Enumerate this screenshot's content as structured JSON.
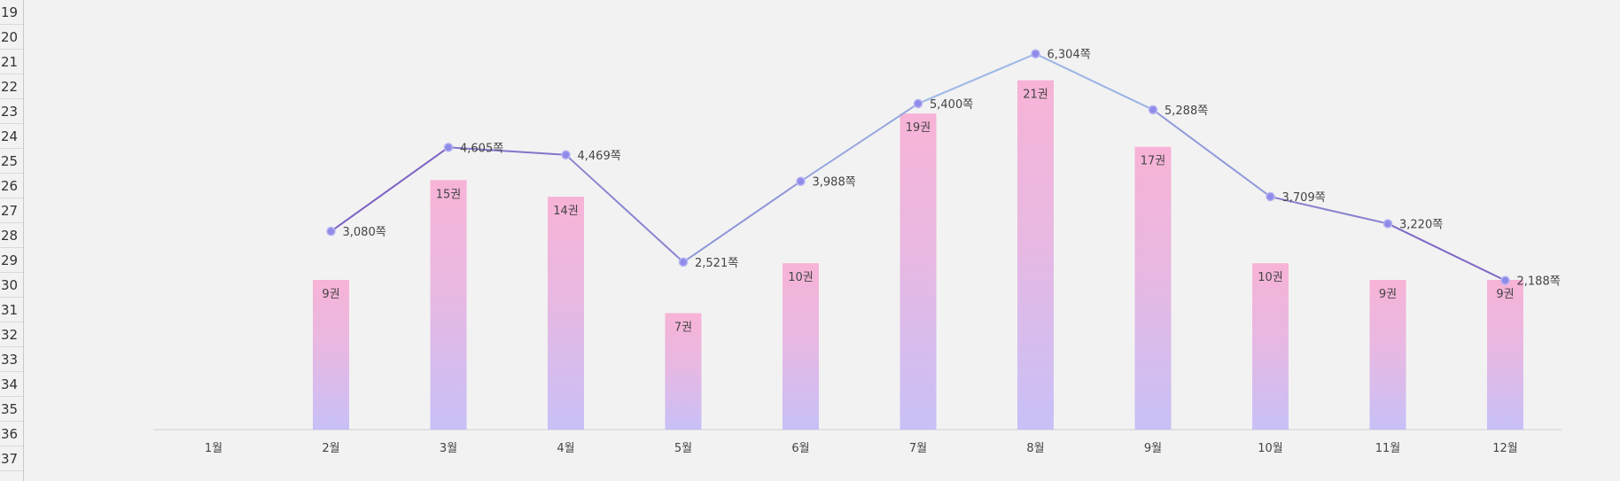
{
  "sheet": {
    "row_numbers": [
      "19",
      "20",
      "21",
      "22",
      "23",
      "24",
      "25",
      "26",
      "27",
      "28",
      "29",
      "30",
      "31",
      "32",
      "33",
      "34",
      "35",
      "36",
      "37"
    ]
  },
  "chart_data": {
    "type": "bar+line",
    "categories": [
      "1월",
      "2월",
      "3월",
      "4월",
      "5월",
      "6월",
      "7월",
      "8월",
      "9월",
      "10월",
      "11월",
      "12월"
    ],
    "series": [
      {
        "type": "bar",
        "values": [
          null,
          9,
          15,
          14,
          7,
          10,
          19,
          21,
          17,
          10,
          9,
          9
        ],
        "labels": [
          "",
          "9권",
          "15권",
          "14권",
          "7권",
          "10권",
          "19권",
          "21권",
          "17권",
          "10권",
          "9권",
          "9권"
        ],
        "color_top": "#f7b3d6",
        "color_bottom": "#c8c0f7"
      },
      {
        "type": "line",
        "values": [
          null,
          3080,
          4605,
          4469,
          2521,
          3988,
          5400,
          6304,
          5288,
          3709,
          3220,
          2188
        ],
        "labels": [
          "",
          "3,080쪽",
          "4,605쪽",
          "4,469쪽",
          "2,521쪽",
          "3,988쪽",
          "5,400쪽",
          "6,304쪽",
          "5,288쪽",
          "3,709쪽",
          "3,220쪽",
          "2,188쪽"
        ],
        "color_start": "#7a5bbf",
        "color_mid": "#9fc0ea",
        "marker_color": "#8f8be8"
      }
    ],
    "grid": false,
    "legend": "none",
    "bar_ylim": [
      0,
      22
    ],
    "line_ylim": [
      0,
      7000
    ]
  }
}
